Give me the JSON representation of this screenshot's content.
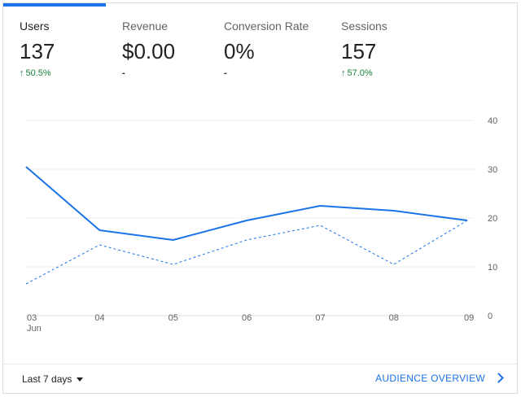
{
  "tabs": [
    {
      "label": "Users",
      "value": "137",
      "change": "50.5%",
      "direction": "up",
      "active": true
    },
    {
      "label": "Revenue",
      "value": "$0.00",
      "change": "-",
      "direction": "none",
      "active": false
    },
    {
      "label": "Conversion Rate",
      "value": "0%",
      "change": "-",
      "direction": "none",
      "active": false
    },
    {
      "label": "Sessions",
      "value": "157",
      "change": "57.0%",
      "direction": "up",
      "active": false
    }
  ],
  "arrow_glyph": "↑",
  "chart_data": {
    "type": "line",
    "x": [
      "03",
      "04",
      "05",
      "06",
      "07",
      "08",
      "09"
    ],
    "x_sub": [
      "Jun",
      "",
      "",
      "",
      "",
      "",
      ""
    ],
    "ylim": [
      0,
      40
    ],
    "yticks": [
      "0",
      "10",
      "20",
      "30",
      "40"
    ],
    "grid": true,
    "series": [
      {
        "values": [
          30.5,
          17.5,
          15.5,
          19.5,
          22.5,
          21.5,
          19.5
        ],
        "style": "solid",
        "color": "#1a73e8"
      },
      {
        "values": [
          6.5,
          14.5,
          10.5,
          15.5,
          18.5,
          10.5,
          19.5
        ],
        "style": "dashed",
        "color": "#1a73e8"
      }
    ]
  },
  "footer": {
    "range_label": "Last 7 days",
    "audience_link": "AUDIENCE OVERVIEW"
  },
  "colors": {
    "accent": "#1a73e8",
    "positive": "#188038"
  }
}
